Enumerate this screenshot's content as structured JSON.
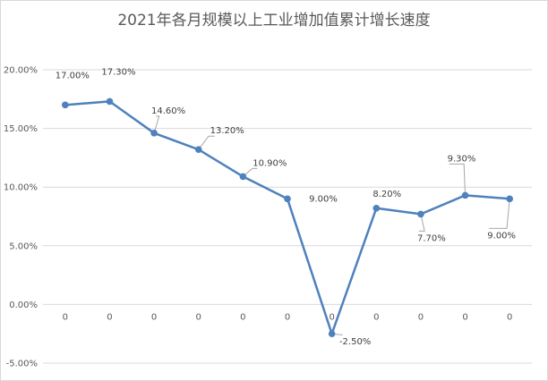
{
  "chart_data": {
    "type": "line",
    "title": "2021年各月规模以上工业增加值累计增长速度",
    "y_tick_labels": [
      "20.00%",
      "15.00%",
      "10.00%",
      "5.00%",
      "0.00%",
      "-5.00%"
    ],
    "y_ticks": [
      20,
      15,
      10,
      5,
      0,
      -5
    ],
    "ylim": [
      -5,
      20
    ],
    "x_tick_labels": [
      "0",
      "0",
      "0",
      "0",
      "0",
      "0",
      "0",
      "0",
      "0",
      "0",
      "0"
    ],
    "series": [
      {
        "values": [
          17.0,
          17.3,
          14.6,
          13.2,
          10.9,
          9.0,
          -2.5,
          8.2,
          7.7,
          9.3,
          9.0
        ],
        "data_labels": [
          "17.00%",
          "17.30%",
          "14.60%",
          "13.20%",
          "10.90%",
          "9.00%",
          "-2.50%",
          "8.20%",
          "7.70%",
          "9.30%",
          "9.00%"
        ]
      }
    ],
    "grid": true,
    "legend": "none",
    "colors": {
      "series": "#4f81bd",
      "grid": "#d9d9d9",
      "text": "#595959"
    }
  }
}
